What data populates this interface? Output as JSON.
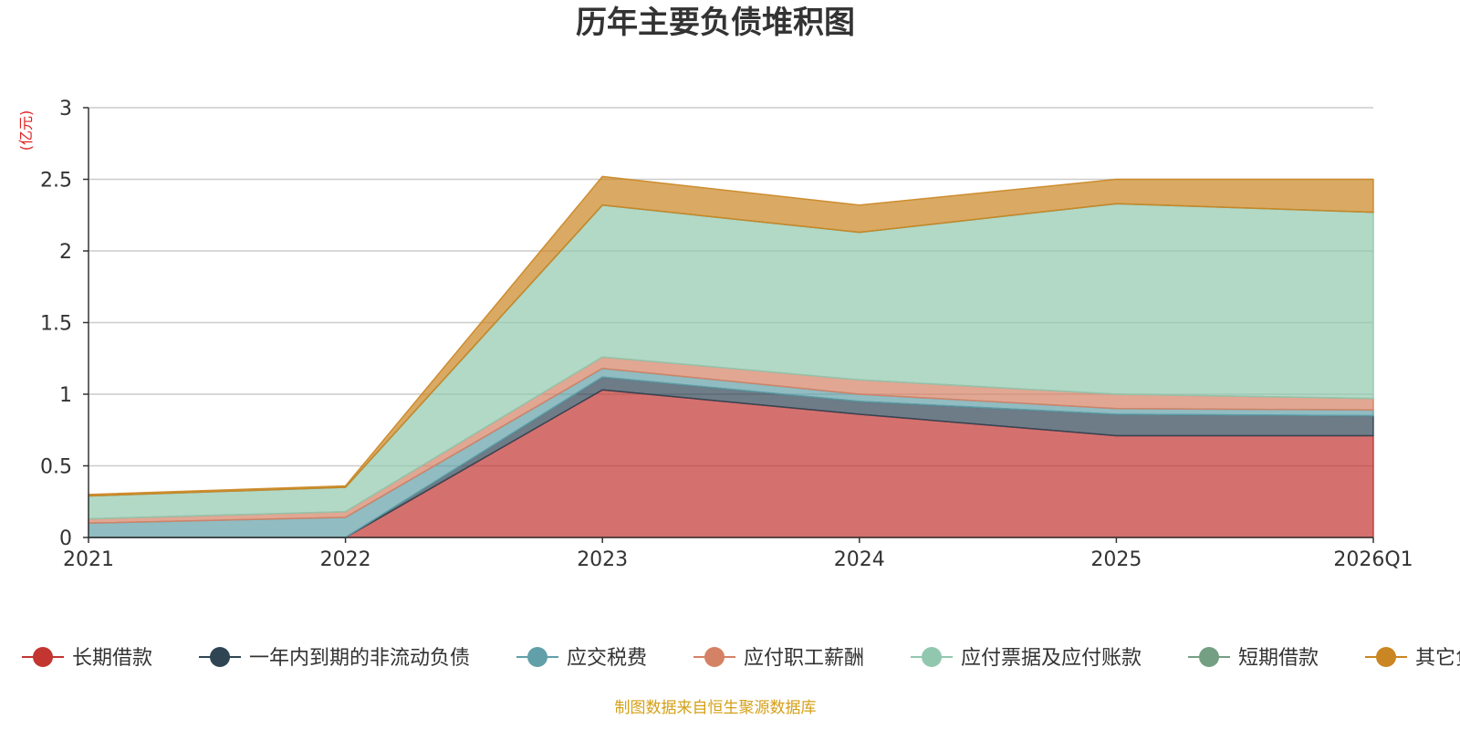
{
  "chart_data": {
    "type": "area",
    "title": "历年主要负债堆积图",
    "unit_label": "(亿元)",
    "categories": [
      "2021",
      "2022",
      "2023",
      "2024",
      "2025",
      "2026Q1"
    ],
    "ylim": [
      0,
      3
    ],
    "yticks": [
      0,
      0.5,
      1,
      1.5,
      2,
      2.5,
      3
    ],
    "ytick_labels": [
      "0",
      "0.5",
      "1",
      "1.5",
      "2",
      "2.5",
      "3"
    ],
    "stacked": true,
    "grid": true,
    "legend_position": "bottom",
    "series": [
      {
        "name": "长期借款",
        "color": "#c23531",
        "values": [
          0,
          0,
          1.03,
          0.86,
          0.71,
          0.71
        ]
      },
      {
        "name": "一年内到期的非流动负债",
        "color": "#2f4554",
        "values": [
          0,
          0,
          0.09,
          0.09,
          0.15,
          0.14
        ]
      },
      {
        "name": "应交税费",
        "color": "#61a0a8",
        "values": [
          0.1,
          0.14,
          0.06,
          0.05,
          0.04,
          0.04
        ]
      },
      {
        "name": "应付职工薪酬",
        "color": "#d48265",
        "values": [
          0.03,
          0.04,
          0.08,
          0.1,
          0.1,
          0.08
        ]
      },
      {
        "name": "应付票据及应付账款",
        "color": "#91c7ae",
        "values": [
          0.16,
          0.17,
          1.06,
          1.03,
          1.33,
          1.3
        ]
      },
      {
        "name": "短期借款",
        "color": "#749f83",
        "values": [
          0,
          0,
          0,
          0,
          0,
          0
        ]
      },
      {
        "name": "其它负债",
        "color": "#ca8622",
        "values": [
          0.01,
          0.01,
          0.2,
          0.19,
          0.17,
          0.23
        ]
      }
    ]
  },
  "source_note": "制图数据来自恒生聚源数据库"
}
